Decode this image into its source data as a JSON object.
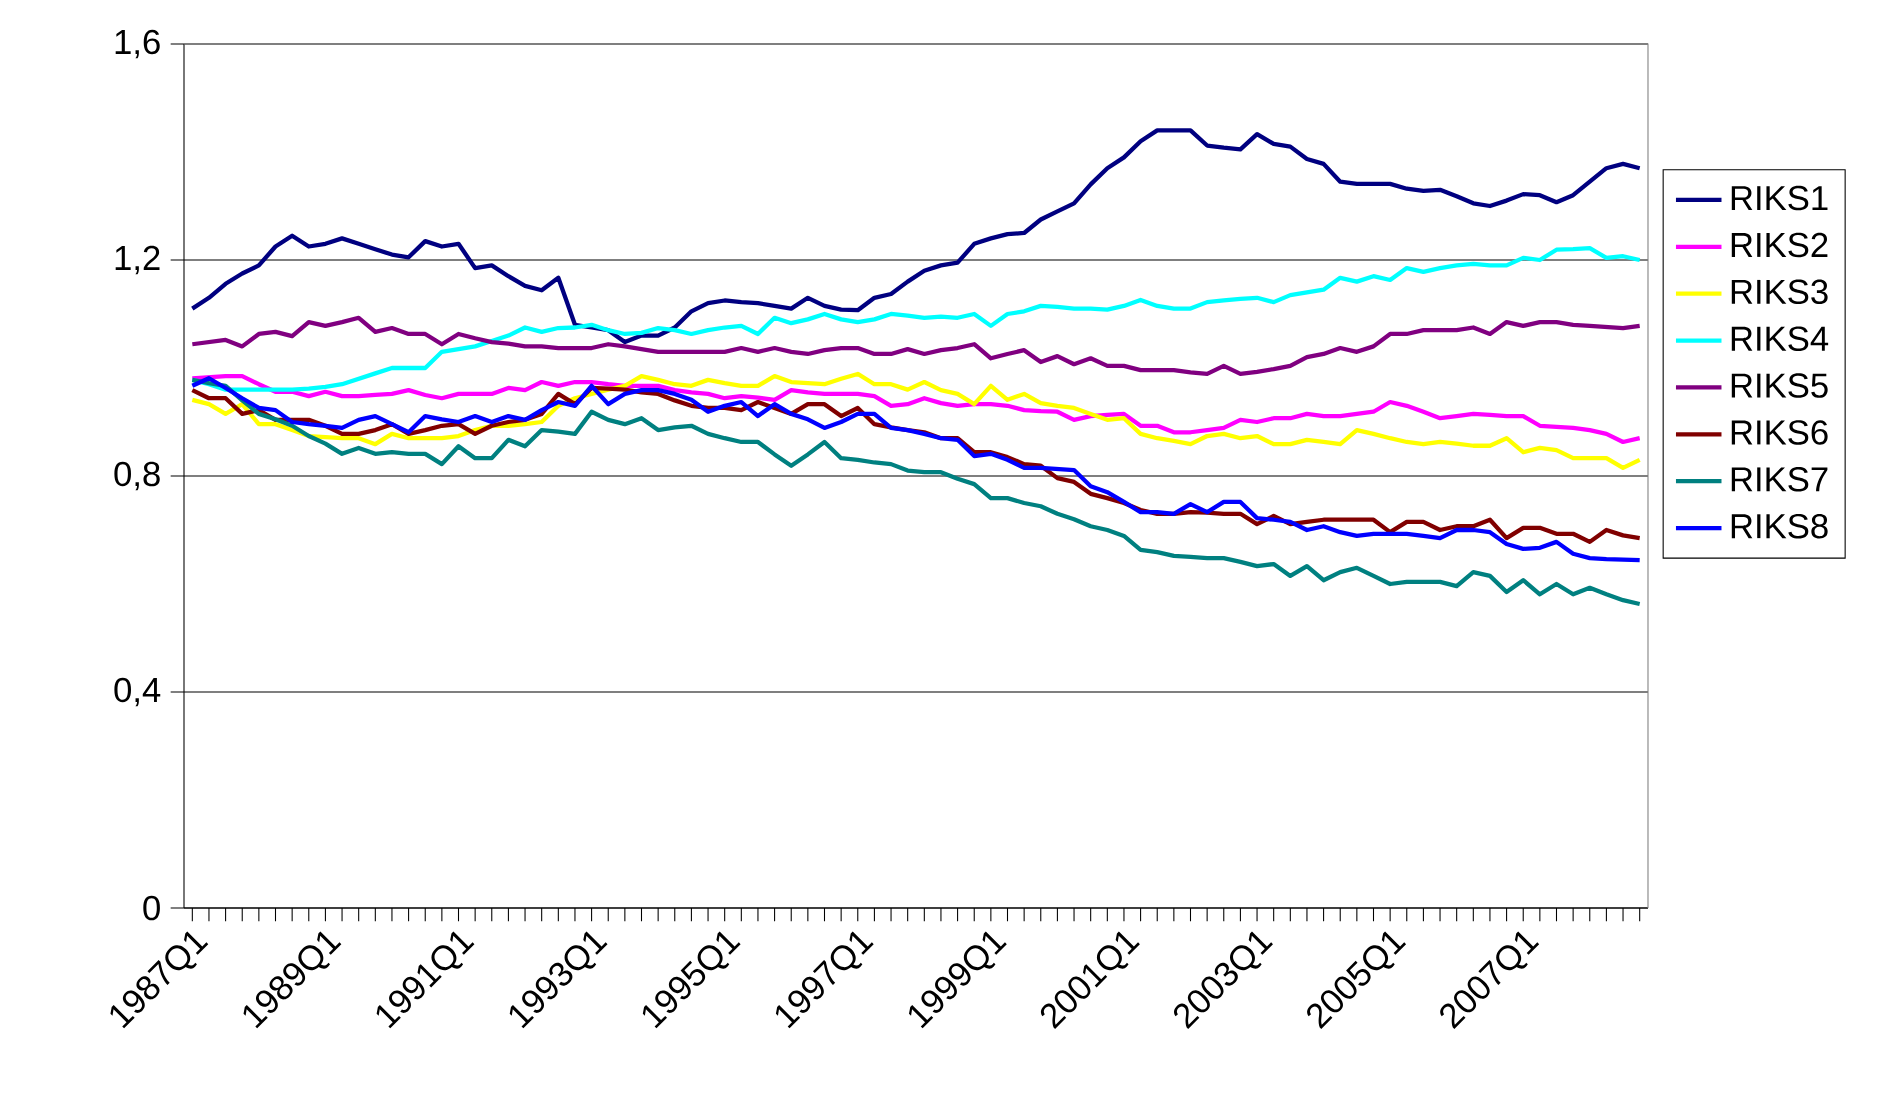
{
  "chart_data": {
    "type": "line",
    "categories": [
      "1987Q1",
      null,
      null,
      null,
      null,
      null,
      null,
      null,
      "1989Q1",
      null,
      null,
      null,
      null,
      null,
      null,
      null,
      "1991Q1",
      null,
      null,
      null,
      null,
      null,
      null,
      null,
      "1993Q1",
      null,
      null,
      null,
      null,
      null,
      null,
      null,
      "1995Q1",
      null,
      null,
      null,
      null,
      null,
      null,
      null,
      "1997Q1",
      null,
      null,
      null,
      null,
      null,
      null,
      null,
      "1999Q1",
      null,
      null,
      null,
      null,
      null,
      null,
      null,
      "2001Q1",
      null,
      null,
      null,
      null,
      null,
      null,
      null,
      "2003Q1",
      null,
      null,
      null,
      null,
      null,
      null,
      null,
      "2005Q1",
      null,
      null,
      null,
      null,
      null,
      null,
      null,
      "2007Q1",
      null,
      null,
      null,
      null,
      null,
      null,
      null
    ],
    "ylim": [
      0,
      1.6
    ],
    "yticks": [
      0,
      {
        "value": 0.4,
        "label": "0,4"
      },
      {
        "value": 0.8,
        "label": "0,8"
      },
      {
        "value": 1.2,
        "label": "1,2"
      },
      {
        "value": 1.6,
        "label": "1,6"
      }
    ],
    "grid": "y",
    "legend": "right",
    "marker": "none",
    "line_style": "solid",
    "series": [
      {
        "name": "RIKS1",
        "color": "#000080",
        "values": [
          1.11,
          1.13,
          1.156,
          1.175,
          1.19,
          1.225,
          1.245,
          1.225,
          1.23,
          1.24,
          1.23,
          1.22,
          1.21,
          1.205,
          1.235,
          1.225,
          1.23,
          1.185,
          1.19,
          1.17,
          1.152,
          1.144,
          1.167,
          1.08,
          1.075,
          1.07,
          1.048,
          1.06,
          1.06,
          1.075,
          1.105,
          1.12,
          1.125,
          1.122,
          1.12,
          1.115,
          1.11,
          1.13,
          1.115,
          1.108,
          1.107,
          1.13,
          1.137,
          1.16,
          1.18,
          1.19,
          1.195,
          1.23,
          1.24,
          1.248,
          1.25,
          1.275,
          1.29,
          1.305,
          1.34,
          1.37,
          1.39,
          1.42,
          1.44,
          1.44,
          1.44,
          1.412,
          1.408,
          1.405,
          1.433,
          1.415,
          1.41,
          1.387,
          1.378,
          1.345,
          1.341,
          1.341,
          1.341,
          1.332,
          1.328,
          1.33,
          1.318,
          1.305,
          1.3,
          1.31,
          1.322,
          1.32,
          1.307,
          1.32,
          1.345,
          1.37,
          1.378,
          1.37
        ]
      },
      {
        "name": "RIKS2",
        "color": "#ff00ff",
        "values": [
          0.981,
          0.983,
          0.985,
          0.985,
          0.97,
          0.956,
          0.956,
          0.948,
          0.956,
          0.948,
          0.948,
          0.95,
          0.952,
          0.959,
          0.95,
          0.944,
          0.952,
          0.952,
          0.952,
          0.963,
          0.959,
          0.974,
          0.967,
          0.974,
          0.974,
          0.97,
          0.967,
          0.967,
          0.967,
          0.959,
          0.955,
          0.952,
          0.944,
          0.948,
          0.945,
          0.941,
          0.959,
          0.955,
          0.952,
          0.952,
          0.952,
          0.948,
          0.93,
          0.933,
          0.944,
          0.935,
          0.93,
          0.933,
          0.933,
          0.93,
          0.922,
          0.92,
          0.919,
          0.904,
          0.911,
          0.913,
          0.915,
          0.893,
          0.893,
          0.881,
          0.881,
          0.885,
          0.889,
          0.904,
          0.9,
          0.907,
          0.907,
          0.915,
          0.911,
          0.911,
          0.915,
          0.919,
          0.937,
          0.93,
          0.919,
          0.907,
          0.911,
          0.915,
          0.913,
          0.911,
          0.911,
          0.893,
          0.891,
          0.889,
          0.885,
          0.878,
          0.863,
          0.87
        ]
      },
      {
        "name": "RIKS3",
        "color": "#ffff00",
        "values": [
          0.941,
          0.933,
          0.915,
          0.933,
          0.896,
          0.896,
          0.885,
          0.874,
          0.872,
          0.87,
          0.87,
          0.859,
          0.878,
          0.87,
          0.87,
          0.87,
          0.874,
          0.885,
          0.893,
          0.893,
          0.896,
          0.9,
          0.93,
          0.944,
          0.952,
          0.96,
          0.967,
          0.985,
          0.978,
          0.97,
          0.967,
          0.978,
          0.972,
          0.967,
          0.967,
          0.985,
          0.974,
          0.972,
          0.97,
          0.98,
          0.989,
          0.97,
          0.97,
          0.96,
          0.974,
          0.959,
          0.952,
          0.933,
          0.967,
          0.941,
          0.952,
          0.935,
          0.93,
          0.926,
          0.915,
          0.904,
          0.907,
          0.878,
          0.87,
          0.865,
          0.859,
          0.874,
          0.878,
          0.87,
          0.874,
          0.859,
          0.859,
          0.867,
          0.863,
          0.859,
          0.885,
          0.878,
          0.87,
          0.863,
          0.859,
          0.863,
          0.86,
          0.856,
          0.856,
          0.87,
          0.844,
          0.852,
          0.848,
          0.833,
          0.833,
          0.833,
          0.815,
          0.83
        ]
      },
      {
        "name": "RIKS4",
        "color": "#00ffff",
        "values": [
          0.978,
          0.97,
          0.96,
          0.96,
          0.96,
          0.96,
          0.96,
          0.962,
          0.965,
          0.97,
          0.98,
          0.99,
          1.0,
          1.0,
          1.0,
          1.03,
          1.035,
          1.04,
          1.05,
          1.06,
          1.075,
          1.067,
          1.074,
          1.075,
          1.08,
          1.07,
          1.063,
          1.065,
          1.074,
          1.07,
          1.063,
          1.07,
          1.075,
          1.078,
          1.063,
          1.093,
          1.083,
          1.09,
          1.1,
          1.09,
          1.085,
          1.09,
          1.1,
          1.097,
          1.093,
          1.095,
          1.093,
          1.1,
          1.078,
          1.1,
          1.105,
          1.115,
          1.113,
          1.11,
          1.11,
          1.108,
          1.115,
          1.126,
          1.115,
          1.11,
          1.11,
          1.122,
          1.125,
          1.128,
          1.13,
          1.122,
          1.135,
          1.14,
          1.145,
          1.167,
          1.16,
          1.17,
          1.163,
          1.185,
          1.178,
          1.185,
          1.19,
          1.193,
          1.19,
          1.19,
          1.204,
          1.2,
          1.219,
          1.22,
          1.222,
          1.204,
          1.207,
          1.2
        ]
      },
      {
        "name": "RIKS5",
        "color": "#800080",
        "values": [
          1.044,
          1.048,
          1.052,
          1.04,
          1.063,
          1.067,
          1.059,
          1.085,
          1.078,
          1.085,
          1.093,
          1.067,
          1.074,
          1.063,
          1.063,
          1.044,
          1.063,
          1.055,
          1.048,
          1.045,
          1.04,
          1.04,
          1.037,
          1.037,
          1.037,
          1.044,
          1.04,
          1.035,
          1.03,
          1.03,
          1.03,
          1.03,
          1.03,
          1.037,
          1.03,
          1.037,
          1.03,
          1.026,
          1.033,
          1.037,
          1.037,
          1.026,
          1.026,
          1.035,
          1.026,
          1.033,
          1.037,
          1.044,
          1.018,
          1.026,
          1.033,
          1.011,
          1.022,
          1.007,
          1.018,
          1.004,
          1.004,
          0.996,
          0.996,
          0.996,
          0.992,
          0.989,
          1.004,
          0.989,
          0.993,
          0.998,
          1.004,
          1.02,
          1.026,
          1.037,
          1.03,
          1.04,
          1.063,
          1.063,
          1.07,
          1.07,
          1.07,
          1.075,
          1.063,
          1.085,
          1.078,
          1.085,
          1.085,
          1.08,
          1.078,
          1.076,
          1.074,
          1.078
        ]
      },
      {
        "name": "RIKS6",
        "color": "#800000",
        "values": [
          0.959,
          0.944,
          0.944,
          0.915,
          0.922,
          0.904,
          0.904,
          0.904,
          0.893,
          0.878,
          0.878,
          0.885,
          0.896,
          0.878,
          0.885,
          0.893,
          0.896,
          0.878,
          0.893,
          0.9,
          0.904,
          0.915,
          0.952,
          0.933,
          0.963,
          0.962,
          0.96,
          0.955,
          0.952,
          0.94,
          0.93,
          0.926,
          0.926,
          0.922,
          0.937,
          0.926,
          0.915,
          0.933,
          0.933,
          0.911,
          0.926,
          0.896,
          0.89,
          0.885,
          0.881,
          0.87,
          0.87,
          0.844,
          0.844,
          0.835,
          0.822,
          0.819,
          0.796,
          0.789,
          0.767,
          0.759,
          0.75,
          0.737,
          0.73,
          0.73,
          0.733,
          0.732,
          0.73,
          0.73,
          0.711,
          0.726,
          0.711,
          0.715,
          0.719,
          0.719,
          0.719,
          0.719,
          0.696,
          0.715,
          0.715,
          0.7,
          0.707,
          0.707,
          0.719,
          0.685,
          0.704,
          0.704,
          0.693,
          0.693,
          0.678,
          0.7,
          0.69,
          0.685
        ]
      },
      {
        "name": "RIKS7",
        "color": "#008080",
        "values": [
          0.978,
          0.972,
          0.967,
          0.94,
          0.915,
          0.905,
          0.893,
          0.874,
          0.86,
          0.841,
          0.852,
          0.841,
          0.844,
          0.841,
          0.841,
          0.822,
          0.855,
          0.833,
          0.833,
          0.867,
          0.855,
          0.885,
          0.882,
          0.878,
          0.919,
          0.904,
          0.896,
          0.907,
          0.885,
          0.89,
          0.893,
          0.878,
          0.87,
          0.863,
          0.863,
          0.84,
          0.819,
          0.84,
          0.863,
          0.833,
          0.83,
          0.825,
          0.822,
          0.81,
          0.807,
          0.807,
          0.795,
          0.785,
          0.759,
          0.759,
          0.75,
          0.744,
          0.73,
          0.72,
          0.707,
          0.7,
          0.689,
          0.663,
          0.659,
          0.652,
          0.65,
          0.648,
          0.648,
          0.641,
          0.633,
          0.637,
          0.615,
          0.633,
          0.607,
          0.622,
          0.63,
          0.615,
          0.6,
          0.604,
          0.604,
          0.604,
          0.596,
          0.622,
          0.615,
          0.585,
          0.607,
          0.581,
          0.6,
          0.581,
          0.593,
          0.581,
          0.57,
          0.563
        ]
      },
      {
        "name": "RIKS8",
        "color": "#0000ff",
        "values": [
          0.967,
          0.981,
          0.963,
          0.944,
          0.926,
          0.922,
          0.9,
          0.896,
          0.893,
          0.889,
          0.904,
          0.911,
          0.896,
          0.881,
          0.911,
          0.905,
          0.9,
          0.911,
          0.9,
          0.911,
          0.904,
          0.922,
          0.937,
          0.93,
          0.967,
          0.933,
          0.952,
          0.959,
          0.959,
          0.952,
          0.941,
          0.919,
          0.93,
          0.937,
          0.911,
          0.933,
          0.915,
          0.905,
          0.889,
          0.9,
          0.915,
          0.915,
          0.889,
          0.885,
          0.878,
          0.87,
          0.867,
          0.837,
          0.841,
          0.83,
          0.815,
          0.815,
          0.813,
          0.811,
          0.781,
          0.77,
          0.752,
          0.733,
          0.733,
          0.73,
          0.748,
          0.733,
          0.752,
          0.752,
          0.722,
          0.719,
          0.715,
          0.7,
          0.707,
          0.696,
          0.689,
          0.693,
          0.693,
          0.693,
          0.689,
          0.685,
          0.7,
          0.7,
          0.696,
          0.674,
          0.665,
          0.667,
          0.678,
          0.656,
          0.648,
          0.646,
          0.645,
          0.644
        ]
      }
    ]
  }
}
